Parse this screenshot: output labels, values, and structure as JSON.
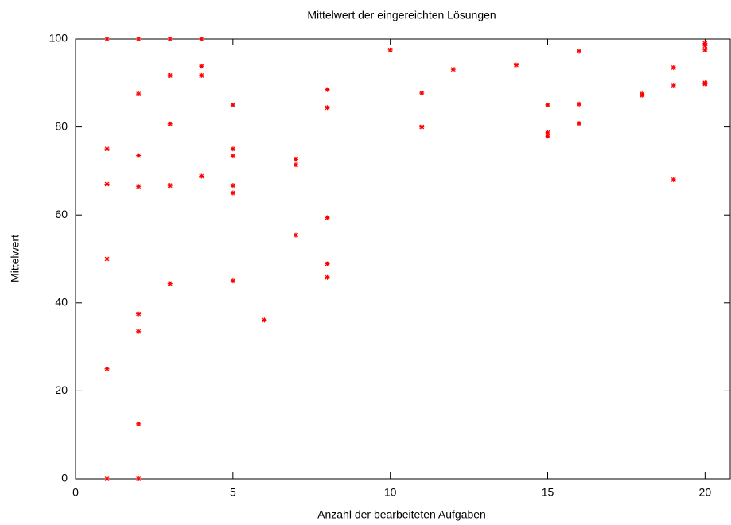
{
  "chart_data": {
    "type": "scatter",
    "title": "Mittelwert der eingereichten Lösungen",
    "xlabel": "Anzahl der bearbeiteten Aufgaben",
    "ylabel": "Mittelwert",
    "xlim": [
      0,
      20.8
    ],
    "ylim": [
      0,
      100
    ],
    "xticks": [
      0,
      5,
      10,
      15,
      20
    ],
    "yticks": [
      0,
      20,
      40,
      60,
      80,
      100
    ],
    "grid": false,
    "color": "#ff0000",
    "x": [
      1,
      1,
      1,
      1,
      1,
      1,
      2,
      2,
      2,
      2,
      2,
      2,
      2,
      2,
      3,
      3,
      3,
      3,
      3,
      4,
      4,
      4,
      4,
      5,
      5,
      5,
      5,
      5,
      5,
      6,
      7,
      7,
      7,
      8,
      8,
      8,
      8,
      8,
      10,
      11,
      11,
      12,
      14,
      15,
      15,
      15,
      16,
      16,
      16,
      18,
      18,
      19,
      19,
      19,
      20,
      20,
      20,
      20,
      20
    ],
    "values": [
      100,
      75,
      67,
      50,
      25,
      0,
      100,
      87.5,
      73.5,
      66.5,
      37.5,
      33.5,
      12.5,
      0,
      100,
      91.7,
      80.7,
      66.7,
      44.4,
      100,
      93.8,
      91.7,
      68.8,
      85,
      75,
      73.4,
      66.7,
      65,
      45,
      36.1,
      72.6,
      71.4,
      55.4,
      88.5,
      84.4,
      59.4,
      48.9,
      45.8,
      97.5,
      87.7,
      80,
      93.1,
      94.1,
      85,
      78.7,
      77.9,
      97.2,
      85.2,
      80.8,
      87.5,
      87.2,
      93.5,
      89.5,
      68,
      99,
      98.5,
      97.5,
      90,
      89.8
    ]
  }
}
